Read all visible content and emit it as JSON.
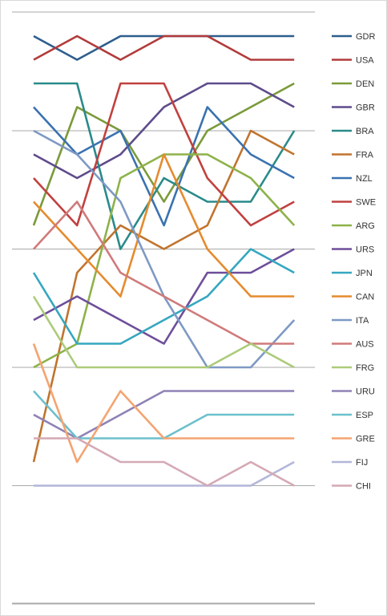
{
  "chart_data": {
    "type": "line",
    "title": "",
    "xlabel": "",
    "ylabel": "",
    "x": [
      1,
      2,
      3,
      4,
      5,
      6,
      7
    ],
    "ylim": [
      1,
      25
    ],
    "y_inverted": true,
    "gridlines": [
      0,
      5,
      10,
      15,
      20,
      25
    ],
    "legend_position": "right",
    "series": [
      {
        "name": "GDR",
        "color": "#2E5E8E",
        "values": [
          1,
          2,
          1,
          1,
          1,
          1,
          1
        ]
      },
      {
        "name": "USA",
        "color": "#B23B3B",
        "values": [
          2,
          1,
          2,
          1,
          1,
          2,
          2
        ]
      },
      {
        "name": "DEN",
        "color": "#7A9A3A",
        "values": [
          9,
          4,
          5,
          8,
          5,
          4,
          3
        ]
      },
      {
        "name": "GBR",
        "color": "#5E4B8B",
        "values": [
          6,
          7,
          6,
          4,
          3,
          3,
          4
        ]
      },
      {
        "name": "BRA",
        "color": "#2A8A8A",
        "values": [
          3,
          3,
          10,
          7,
          8,
          8,
          5
        ]
      },
      {
        "name": "FRA",
        "color": "#C0742E",
        "values": [
          19,
          11,
          9,
          10,
          9,
          5,
          6
        ]
      },
      {
        "name": "NZL",
        "color": "#3A72B0",
        "values": [
          4,
          6,
          5,
          9,
          4,
          6,
          7
        ]
      },
      {
        "name": "SWE",
        "color": "#C0413F",
        "values": [
          7,
          9,
          3,
          3,
          7,
          9,
          8
        ]
      },
      {
        "name": "ARG",
        "color": "#8DB24A",
        "values": [
          15,
          14,
          7,
          6,
          6,
          7,
          9
        ]
      },
      {
        "name": "URS",
        "color": "#6E4E9A",
        "values": [
          13,
          12,
          13,
          14,
          11,
          11,
          10
        ]
      },
      {
        "name": "JPN",
        "color": "#35A7BF",
        "values": [
          11,
          14,
          14,
          13,
          12,
          10,
          11
        ]
      },
      {
        "name": "CAN",
        "color": "#E58B2E",
        "values": [
          8,
          10,
          12,
          6,
          10,
          12,
          12
        ]
      },
      {
        "name": "ITA",
        "color": "#7E99C4",
        "values": [
          5,
          6,
          8,
          12,
          15,
          15,
          13
        ]
      },
      {
        "name": "AUS",
        "color": "#D07A7A",
        "values": [
          10,
          8,
          11,
          12,
          13,
          14,
          14
        ]
      },
      {
        "name": "FRG",
        "color": "#ACCB7A",
        "values": [
          12,
          15,
          15,
          15,
          15,
          14,
          15
        ]
      },
      {
        "name": "URU",
        "color": "#8F82B5",
        "values": [
          17,
          18,
          17,
          16,
          16,
          16,
          16
        ]
      },
      {
        "name": "ESP",
        "color": "#6CC0CC",
        "values": [
          16,
          18,
          18,
          18,
          17,
          17,
          17
        ]
      },
      {
        "name": "GRE",
        "color": "#F4A470",
        "values": [
          14,
          19,
          16,
          18,
          18,
          18,
          18
        ]
      },
      {
        "name": "FIJ",
        "color": "#B3B6D9",
        "values": [
          20,
          20,
          20,
          20,
          20,
          20,
          19
        ]
      },
      {
        "name": "CHI",
        "color": "#D4A9B4",
        "values": [
          18,
          18,
          19,
          19,
          20,
          19,
          20
        ]
      }
    ]
  }
}
